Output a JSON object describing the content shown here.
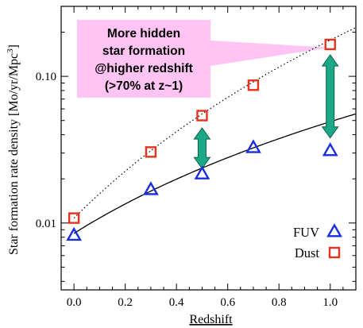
{
  "chart_data": {
    "type": "scatter",
    "title": "",
    "xlabel": "Redshift",
    "ylabel": "Star formation rate density [Mo/yr/Mpc",
    "ylabel_superscript": "3",
    "ylabel_close": "]",
    "xlim": [
      -0.05,
      1.1
    ],
    "ylim": [
      0.0035,
      0.3
    ],
    "yscale": "log",
    "x_ticks": [
      0.0,
      0.2,
      0.4,
      0.6,
      0.8,
      1.0
    ],
    "x_tick_labels": [
      "0.0",
      "0.2",
      "0.4",
      "0.6",
      "0.8",
      "1.0"
    ],
    "y_ticks": [
      0.01,
      0.1
    ],
    "y_tick_labels": [
      "0.01",
      "0.10"
    ],
    "grid": false,
    "legend_position": "bottom-right",
    "series": [
      {
        "name": "FUV",
        "marker": "triangle",
        "color": "#1a2ee0",
        "x": [
          0.0,
          0.3,
          0.5,
          0.7,
          1.0
        ],
        "y": [
          0.0082,
          0.0168,
          0.0215,
          0.0325,
          0.031
        ]
      },
      {
        "name": "Dust",
        "marker": "square",
        "color": "#e8321e",
        "x": [
          0.0,
          0.3,
          0.5,
          0.7,
          1.0
        ],
        "y": [
          0.0108,
          0.0305,
          0.054,
          0.087,
          0.165
        ]
      }
    ],
    "fit_curves": [
      {
        "style": "solid",
        "color": "#000000",
        "x0": 0.0,
        "y0": 0.0085,
        "x1": 1.1,
        "y1": 0.0555
      },
      {
        "style": "dotted",
        "color": "#000000",
        "x0": 0.0,
        "y0": 0.0108,
        "x1": 1.1,
        "y1": 0.215
      }
    ],
    "arrows": [
      {
        "x": 0.5,
        "from": 0.0235,
        "to": 0.0445,
        "color": "#1aa886"
      },
      {
        "x": 1.0,
        "from": 0.038,
        "to": 0.14,
        "color": "#1aa886"
      }
    ],
    "annotation": {
      "lines": [
        "More hidden",
        "star formation",
        "@higher redshift",
        "(>70% at z~1)"
      ],
      "background": "#ffc4f4",
      "points_to": {
        "x": 1.0,
        "y": 0.165
      }
    }
  }
}
